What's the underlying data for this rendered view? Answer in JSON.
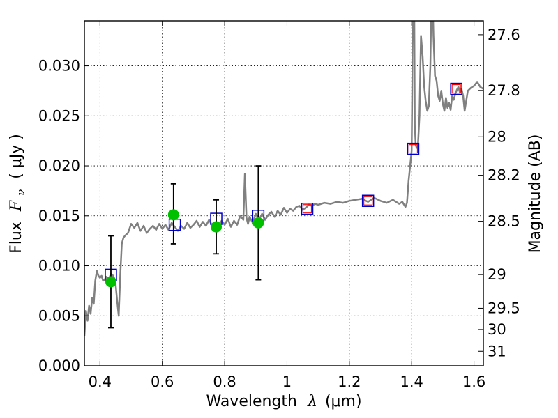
{
  "chart_data": {
    "type": "line",
    "title": "",
    "xlabel": {
      "prefix": "Wavelength",
      "symbol": "λ",
      "unit": "(μm)"
    },
    "ylabel": {
      "prefix": "Flux",
      "symbol": "F",
      "subscript": "ν",
      "unit": "( μJy )"
    },
    "ylabel_right": "Magnitude (AB)",
    "xlim": [
      0.35,
      1.63
    ],
    "ylim": [
      0.0,
      0.0345
    ],
    "grid": true,
    "x_ticks": [
      0.4,
      0.6,
      0.8,
      1.0,
      1.2,
      1.4,
      1.6
    ],
    "x_tick_labels": [
      "0.4",
      "0.6",
      "0.8",
      "1",
      "1.2",
      "1.4",
      "1.6"
    ],
    "y_ticks": [
      0.0,
      0.005,
      0.01,
      0.015,
      0.02,
      0.025,
      0.03
    ],
    "y_tick_labels": [
      "0.000",
      "0.005",
      "0.010",
      "0.015",
      "0.020",
      "0.025",
      "0.030"
    ],
    "mag_ticks": [
      {
        "mag": 27.6,
        "label": "27.6"
      },
      {
        "mag": 27.8,
        "label": "27.8"
      },
      {
        "mag": 28.0,
        "label": "28"
      },
      {
        "mag": 28.2,
        "label": "28.2"
      },
      {
        "mag": 28.5,
        "label": "28.5"
      },
      {
        "mag": 29.0,
        "label": "29"
      },
      {
        "mag": 29.5,
        "label": "29.5"
      },
      {
        "mag": 30.0,
        "label": "30"
      },
      {
        "mag": 31.0,
        "label": "31"
      }
    ],
    "series": [
      {
        "type": "line",
        "color": "#808080",
        "x": [
          0.35,
          0.355,
          0.36,
          0.365,
          0.37,
          0.375,
          0.38,
          0.385,
          0.39,
          0.395,
          0.4,
          0.405,
          0.41,
          0.415,
          0.42,
          0.425,
          0.43,
          0.435,
          0.44,
          0.445,
          0.45,
          0.455,
          0.46,
          0.465,
          0.47,
          0.475,
          0.48,
          0.49,
          0.5,
          0.51,
          0.52,
          0.53,
          0.54,
          0.55,
          0.56,
          0.57,
          0.58,
          0.59,
          0.6,
          0.61,
          0.62,
          0.63,
          0.64,
          0.65,
          0.66,
          0.67,
          0.68,
          0.69,
          0.7,
          0.71,
          0.72,
          0.73,
          0.74,
          0.75,
          0.76,
          0.77,
          0.78,
          0.79,
          0.8,
          0.81,
          0.82,
          0.83,
          0.84,
          0.85,
          0.86,
          0.865,
          0.87,
          0.875,
          0.88,
          0.89,
          0.9,
          0.91,
          0.92,
          0.93,
          0.94,
          0.95,
          0.96,
          0.97,
          0.98,
          0.99,
          1.0,
          1.01,
          1.02,
          1.03,
          1.04,
          1.05,
          1.06,
          1.07,
          1.08,
          1.09,
          1.1,
          1.12,
          1.14,
          1.16,
          1.18,
          1.2,
          1.22,
          1.24,
          1.26,
          1.28,
          1.3,
          1.32,
          1.34,
          1.36,
          1.37,
          1.38,
          1.385,
          1.39,
          1.395,
          1.4,
          1.402,
          1.405,
          1.408,
          1.41,
          1.413,
          1.416,
          1.42,
          1.425,
          1.43,
          1.435,
          1.44,
          1.445,
          1.45,
          1.455,
          1.46,
          1.465,
          1.47,
          1.475,
          1.48,
          1.485,
          1.49,
          1.495,
          1.5,
          1.505,
          1.51,
          1.515,
          1.52,
          1.525,
          1.53,
          1.535,
          1.54,
          1.545,
          1.55,
          1.555,
          1.56,
          1.565,
          1.57,
          1.58,
          1.59,
          1.6,
          1.61,
          1.62,
          1.63
        ],
        "y": [
          0.003,
          0.0055,
          0.0045,
          0.006,
          0.0052,
          0.0068,
          0.0062,
          0.0085,
          0.0095,
          0.009,
          0.0088,
          0.009,
          0.0085,
          0.0086,
          0.0089,
          0.0087,
          0.0088,
          0.0092,
          0.0091,
          0.0088,
          0.0082,
          0.0065,
          0.005,
          0.009,
          0.0122,
          0.0128,
          0.013,
          0.0133,
          0.0142,
          0.0138,
          0.0143,
          0.0135,
          0.014,
          0.0133,
          0.0137,
          0.014,
          0.0136,
          0.0142,
          0.0137,
          0.0141,
          0.0136,
          0.0143,
          0.0139,
          0.0135,
          0.014,
          0.0137,
          0.0143,
          0.0138,
          0.0141,
          0.0145,
          0.0139,
          0.0144,
          0.014,
          0.0146,
          0.014,
          0.0143,
          0.0138,
          0.0145,
          0.0141,
          0.0147,
          0.0139,
          0.0145,
          0.0141,
          0.015,
          0.0146,
          0.0192,
          0.0148,
          0.0142,
          0.0149,
          0.0143,
          0.0152,
          0.0146,
          0.0152,
          0.0146,
          0.0151,
          0.0154,
          0.0149,
          0.0155,
          0.0151,
          0.0158,
          0.0153,
          0.0157,
          0.0155,
          0.0159,
          0.016,
          0.0156,
          0.0158,
          0.0161,
          0.016,
          0.0162,
          0.0161,
          0.0163,
          0.0162,
          0.0164,
          0.0163,
          0.0165,
          0.0166,
          0.0167,
          0.0164,
          0.0168,
          0.0165,
          0.0163,
          0.0166,
          0.0162,
          0.0164,
          0.0159,
          0.0163,
          0.0185,
          0.02,
          0.0215,
          0.028,
          0.04,
          0.038,
          0.024,
          0.0221,
          0.0218,
          0.022,
          0.025,
          0.033,
          0.031,
          0.028,
          0.0265,
          0.0255,
          0.026,
          0.03,
          0.04,
          0.033,
          0.029,
          0.0285,
          0.027,
          0.0265,
          0.0275,
          0.0262,
          0.0255,
          0.0268,
          0.0258,
          0.0263,
          0.0256,
          0.027,
          0.0266,
          0.0272,
          0.0276,
          0.0279,
          0.0273,
          0.0277,
          0.027,
          0.0255,
          0.0275,
          0.0278,
          0.028,
          0.0284,
          0.0279,
          0.0277
        ]
      },
      {
        "type": "scatter",
        "marker": "square-open",
        "color": "#0000cc",
        "x": [
          0.435,
          0.64,
          0.773,
          0.908,
          1.065,
          1.26,
          1.405,
          1.543
        ],
        "y": [
          0.0091,
          0.0141,
          0.0147,
          0.015,
          0.0157,
          0.0165,
          0.0217,
          0.0277
        ]
      },
      {
        "type": "scatter",
        "marker": "square-open-small",
        "color": "#ff0000",
        "x": [
          1.065,
          1.26,
          1.405,
          1.543
        ],
        "y": [
          0.0157,
          0.0165,
          0.0217,
          0.0277
        ]
      },
      {
        "type": "errorbar",
        "marker": "circle-filled",
        "color": "#00c000",
        "x": [
          0.435,
          0.636,
          0.773,
          0.908
        ],
        "y": [
          0.0084,
          0.0151,
          0.0139,
          0.0143
        ],
        "yerr_low": [
          0.0046,
          0.0029,
          0.0027,
          0.0057
        ],
        "yerr_high": [
          0.0046,
          0.0031,
          0.0027,
          0.0057
        ]
      }
    ]
  }
}
